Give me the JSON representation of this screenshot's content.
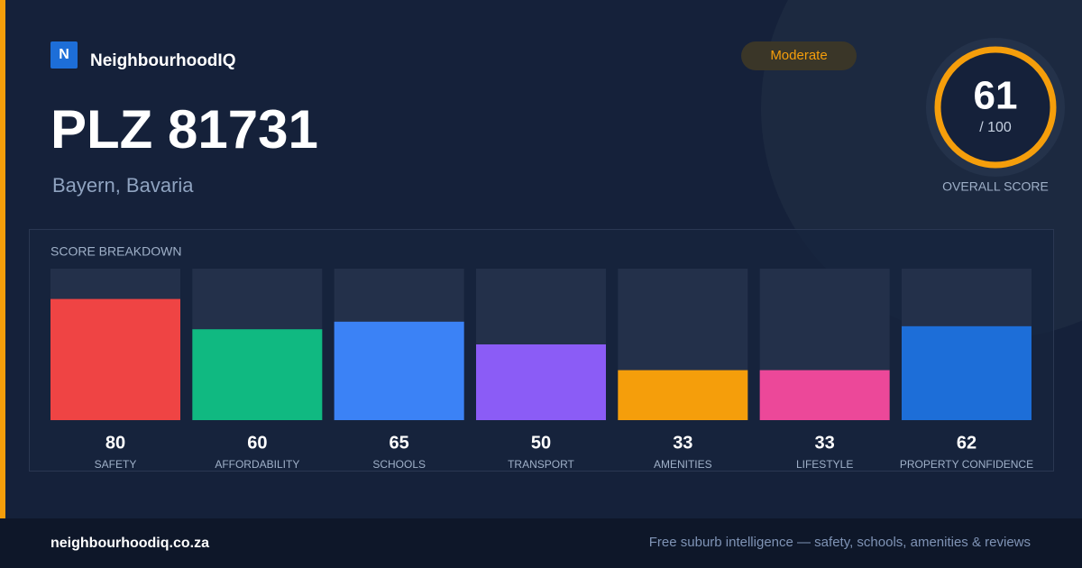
{
  "brand": {
    "logo": "N",
    "name": "NeighbourhoodIQ"
  },
  "badge": "Moderate",
  "title": "PLZ 81731",
  "subtitle": "Bayern, Bavaria",
  "overall": {
    "score": 61,
    "max_label": "/ 100",
    "label": "OVERALL SCORE"
  },
  "chart_data": {
    "type": "bar",
    "title": "SCORE BREAKDOWN",
    "categories": [
      "SAFETY",
      "AFFORDABILITY",
      "SCHOOLS",
      "TRANSPORT",
      "AMENITIES",
      "LIFESTYLE",
      "PROPERTY CONFIDENCE"
    ],
    "values": [
      80,
      60,
      65,
      50,
      33,
      33,
      62
    ],
    "colors": [
      "#ef4444",
      "#10b981",
      "#3b82f6",
      "#8b5cf6",
      "#f59e0b",
      "#ec4899",
      "#1d6ed8"
    ],
    "ylim": [
      0,
      100
    ]
  },
  "footer": {
    "url": "neighbourhoodiq.co.za",
    "tagline": "Free suburb intelligence — safety, schools, amenities & reviews"
  }
}
